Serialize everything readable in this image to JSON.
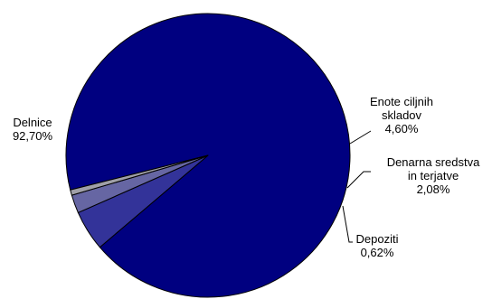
{
  "chart_data": {
    "type": "pie",
    "title": "",
    "slices": [
      {
        "name": "Delnice",
        "value": 92.7,
        "value_label": "92,70%",
        "color": "#000080",
        "label_lines": [
          "Delnice",
          "92,70%"
        ]
      },
      {
        "name": "Enote ciljnih skladov",
        "value": 4.6,
        "value_label": "4,60%",
        "color": "#333399",
        "label_lines": [
          "Enote ciljnih",
          "skladov",
          "4,60%"
        ]
      },
      {
        "name": "Denarna sredstva in terjatve",
        "value": 2.08,
        "value_label": "2,08%",
        "color": "#6666A3",
        "label_lines": [
          "Denarna sredstva",
          "in terjatve",
          "2,08%"
        ]
      },
      {
        "name": "Depoziti",
        "value": 0.62,
        "value_label": "0,62%",
        "color": "#A0A0A8",
        "label_lines": [
          "Depoziti",
          "0,62%"
        ]
      }
    ],
    "legend": "none",
    "outline_color": "#000000"
  }
}
